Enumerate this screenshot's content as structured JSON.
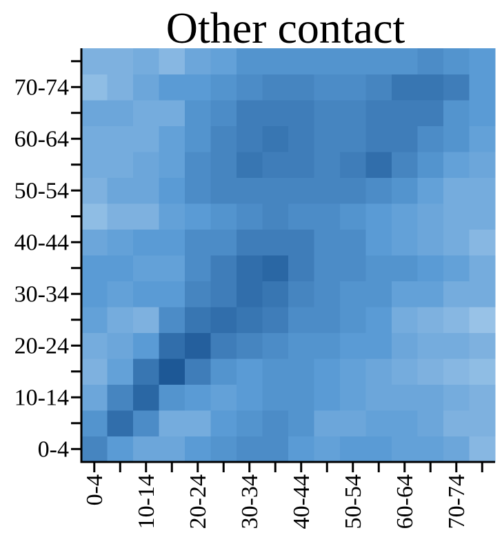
{
  "chart_data": {
    "type": "heatmap",
    "title": "Other contact",
    "x_categories": [
      "0-4",
      null,
      "10-14",
      null,
      "20-24",
      null,
      "30-34",
      null,
      "40-44",
      null,
      "50-54",
      null,
      "60-64",
      null,
      "70-74",
      null
    ],
    "y_categories": [
      "0-4",
      null,
      "10-14",
      null,
      "20-24",
      null,
      "30-34",
      null,
      "40-44",
      null,
      "50-54",
      null,
      "60-64",
      null,
      "70-74",
      null
    ],
    "colorscale": [
      "#b3d3ee",
      "#5a9bd5",
      "#16508f"
    ],
    "values": [
      [
        0.65,
        0.5,
        0.4,
        0.4,
        0.5,
        0.55,
        0.6,
        0.6,
        0.5,
        0.45,
        0.5,
        0.5,
        0.45,
        0.45,
        0.4,
        0.25
      ],
      [
        0.55,
        0.8,
        0.6,
        0.35,
        0.35,
        0.5,
        0.55,
        0.6,
        0.55,
        0.4,
        0.4,
        0.45,
        0.45,
        0.4,
        0.3,
        0.3
      ],
      [
        0.4,
        0.65,
        0.85,
        0.55,
        0.5,
        0.45,
        0.5,
        0.55,
        0.55,
        0.5,
        0.45,
        0.4,
        0.4,
        0.4,
        0.35,
        0.3
      ],
      [
        0.3,
        0.45,
        0.75,
        0.95,
        0.7,
        0.55,
        0.5,
        0.55,
        0.55,
        0.5,
        0.45,
        0.4,
        0.35,
        0.3,
        0.25,
        0.2
      ],
      [
        0.35,
        0.4,
        0.5,
        0.8,
        0.9,
        0.7,
        0.65,
        0.6,
        0.55,
        0.55,
        0.5,
        0.5,
        0.4,
        0.35,
        0.35,
        0.3
      ],
      [
        0.45,
        0.35,
        0.3,
        0.6,
        0.75,
        0.8,
        0.75,
        0.7,
        0.6,
        0.6,
        0.55,
        0.5,
        0.35,
        0.3,
        0.25,
        0.15
      ],
      [
        0.5,
        0.45,
        0.5,
        0.5,
        0.65,
        0.7,
        0.8,
        0.75,
        0.65,
        0.6,
        0.55,
        0.55,
        0.45,
        0.45,
        0.35,
        0.35
      ],
      [
        0.5,
        0.5,
        0.45,
        0.45,
        0.6,
        0.7,
        0.8,
        0.85,
        0.7,
        0.6,
        0.6,
        0.55,
        0.55,
        0.5,
        0.45,
        0.35
      ],
      [
        0.4,
        0.45,
        0.5,
        0.5,
        0.6,
        0.6,
        0.7,
        0.7,
        0.7,
        0.6,
        0.6,
        0.5,
        0.45,
        0.4,
        0.35,
        0.25
      ],
      [
        0.2,
        0.3,
        0.3,
        0.45,
        0.5,
        0.55,
        0.6,
        0.65,
        0.6,
        0.6,
        0.55,
        0.5,
        0.45,
        0.4,
        0.35,
        0.35
      ],
      [
        0.3,
        0.4,
        0.4,
        0.5,
        0.6,
        0.65,
        0.65,
        0.65,
        0.65,
        0.65,
        0.65,
        0.6,
        0.55,
        0.45,
        0.35,
        0.35
      ],
      [
        0.35,
        0.35,
        0.4,
        0.45,
        0.6,
        0.65,
        0.75,
        0.7,
        0.7,
        0.65,
        0.7,
        0.8,
        0.65,
        0.55,
        0.45,
        0.4
      ],
      [
        0.35,
        0.35,
        0.35,
        0.45,
        0.55,
        0.65,
        0.7,
        0.75,
        0.7,
        0.65,
        0.65,
        0.7,
        0.7,
        0.6,
        0.55,
        0.45
      ],
      [
        0.4,
        0.4,
        0.35,
        0.35,
        0.55,
        0.6,
        0.7,
        0.7,
        0.7,
        0.65,
        0.65,
        0.7,
        0.7,
        0.7,
        0.55,
        0.5
      ],
      [
        0.2,
        0.3,
        0.4,
        0.5,
        0.5,
        0.55,
        0.6,
        0.65,
        0.65,
        0.6,
        0.6,
        0.65,
        0.75,
        0.75,
        0.7,
        0.5
      ],
      [
        0.3,
        0.3,
        0.35,
        0.25,
        0.4,
        0.45,
        0.55,
        0.55,
        0.55,
        0.55,
        0.55,
        0.55,
        0.55,
        0.6,
        0.55,
        0.5
      ]
    ]
  }
}
